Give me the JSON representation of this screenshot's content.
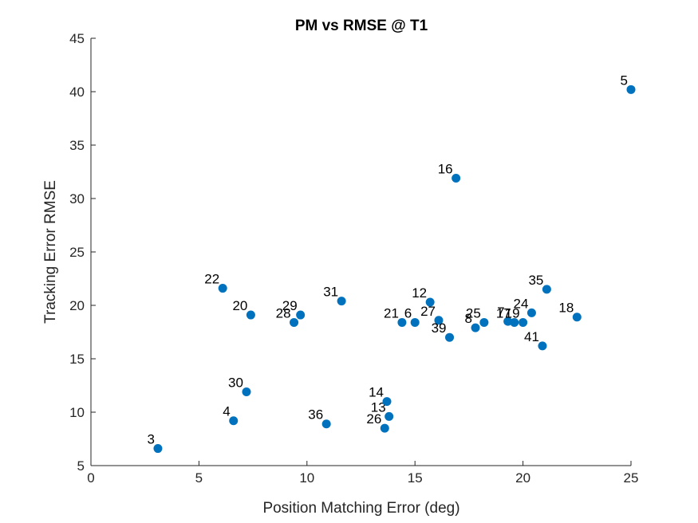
{
  "chart_data": {
    "type": "scatter",
    "title": "PM vs RMSE @ T1",
    "xlabel": "Position Matching Error (deg)",
    "ylabel": "Tracking Error RMSE",
    "xlim": [
      0,
      25
    ],
    "ylim": [
      5,
      45
    ],
    "xticks": [
      0,
      5,
      10,
      15,
      20,
      25
    ],
    "yticks": [
      5,
      10,
      15,
      20,
      25,
      30,
      35,
      40,
      45
    ],
    "xtick_labels": [
      "0",
      "5",
      "10",
      "15",
      "20",
      "25"
    ],
    "ytick_labels": [
      "5",
      "10",
      "15",
      "20",
      "25",
      "30",
      "35",
      "40",
      "45"
    ],
    "grid": false,
    "marker_color": "#0072BD",
    "points": [
      {
        "label": "3",
        "x": 3.1,
        "y": 6.6
      },
      {
        "label": "4",
        "x": 6.6,
        "y": 9.2
      },
      {
        "label": "5",
        "x": 25.0,
        "y": 40.2
      },
      {
        "label": "6",
        "x": 15.0,
        "y": 18.4
      },
      {
        "label": "7",
        "x": 19.3,
        "y": 18.5
      },
      {
        "label": "8",
        "x": 17.8,
        "y": 17.9
      },
      {
        "label": "12",
        "x": 15.7,
        "y": 20.3
      },
      {
        "label": "13",
        "x": 13.8,
        "y": 9.6
      },
      {
        "label": "14",
        "x": 13.7,
        "y": 11.0
      },
      {
        "label": "16",
        "x": 16.9,
        "y": 31.9
      },
      {
        "label": "17",
        "x": 19.6,
        "y": 18.4
      },
      {
        "label": "18",
        "x": 22.5,
        "y": 18.9
      },
      {
        "label": "19",
        "x": 20.0,
        "y": 18.4
      },
      {
        "label": "20",
        "x": 7.4,
        "y": 19.1
      },
      {
        "label": "21",
        "x": 14.4,
        "y": 18.4
      },
      {
        "label": "22",
        "x": 6.1,
        "y": 21.6
      },
      {
        "label": "24",
        "x": 20.4,
        "y": 19.3
      },
      {
        "label": "25",
        "x": 18.2,
        "y": 18.4
      },
      {
        "label": "26",
        "x": 13.6,
        "y": 8.5
      },
      {
        "label": "27",
        "x": 16.1,
        "y": 18.6
      },
      {
        "label": "28",
        "x": 9.4,
        "y": 18.4
      },
      {
        "label": "29",
        "x": 9.7,
        "y": 19.1
      },
      {
        "label": "30",
        "x": 7.2,
        "y": 11.9
      },
      {
        "label": "31",
        "x": 11.6,
        "y": 20.4
      },
      {
        "label": "35",
        "x": 21.1,
        "y": 21.5
      },
      {
        "label": "36",
        "x": 10.9,
        "y": 8.9
      },
      {
        "label": "39",
        "x": 16.6,
        "y": 17.0
      },
      {
        "label": "41",
        "x": 20.9,
        "y": 16.2
      }
    ]
  }
}
